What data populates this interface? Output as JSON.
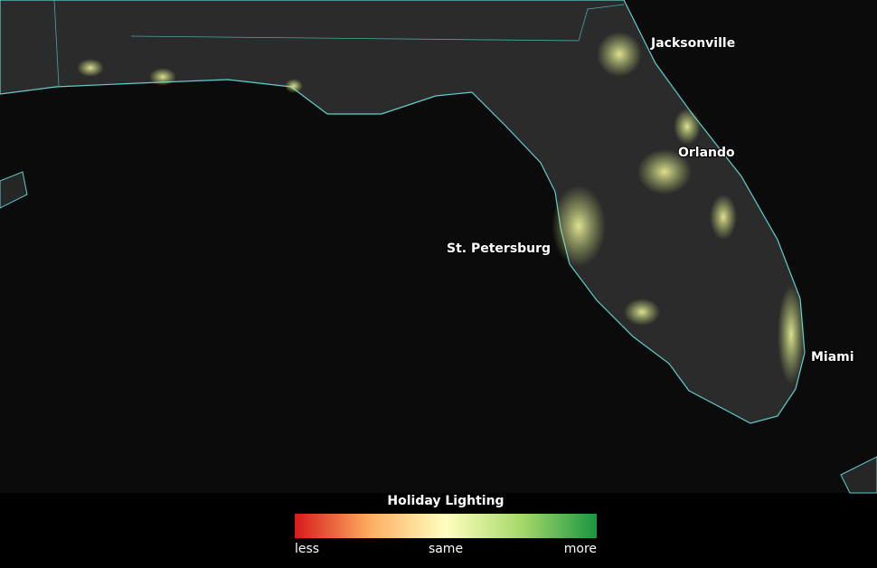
{
  "map": {
    "labels": [
      "Jacksonville",
      "Orlando",
      "St. Petersburg",
      "Miami"
    ]
  },
  "legend": {
    "title": "Holiday Lighting",
    "labels": [
      "less",
      "same",
      "more"
    ]
  }
}
